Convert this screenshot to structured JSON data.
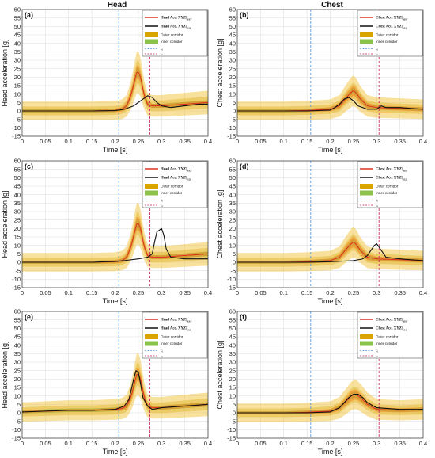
{
  "figure": {
    "column_titles": [
      "Head",
      "Chest"
    ]
  },
  "colors": {
    "outer_corridor": "#f2c94c",
    "outer_corridor_dark": "#d9a400",
    "inner_corridor": "#8bc34a",
    "ref_mean": "#e0301e",
    "ref_band": "#f28c28",
    "simulation": "#111111",
    "t0_line": "#4a90e2",
    "t1_line": "#c2185b",
    "grid": "#d9d9d9"
  },
  "chart_data": [
    {
      "panel": "(a)",
      "type": "line",
      "xlabel": "Time [s]",
      "ylabel": "Head acceleration [g]",
      "xlim": [
        0,
        0.4
      ],
      "ylim": [
        -15,
        60
      ],
      "xticks": [
        "0",
        "0.05",
        "0.1",
        "0.15",
        "0.2",
        "0.25",
        "0.3",
        "0.35",
        "0.4"
      ],
      "yticks": [
        "-15",
        "-10",
        "-5",
        "0",
        "5",
        "10",
        "15",
        "20",
        "25",
        "30",
        "35",
        "40",
        "45",
        "50",
        "55",
        "60"
      ],
      "t0": 0.208,
      "t1": 0.275,
      "legend": {
        "ref": "Head Acc. XYZ|",
        "ref_sub": "REF",
        "sim": "Head Acc. XYZ|",
        "sim_sub": "S31",
        "outer": "Outer corridor",
        "inner": "Inner corridor",
        "t0": "t₀",
        "t1": "t₁"
      },
      "series": [
        {
          "role": "reference",
          "x": [
            0,
            0.05,
            0.1,
            0.15,
            0.2,
            0.215,
            0.225,
            0.235,
            0.242,
            0.248,
            0.255,
            0.262,
            0.27,
            0.28,
            0.3,
            0.35,
            0.4
          ],
          "y": [
            0,
            0,
            0,
            0,
            0.3,
            1,
            3,
            10,
            18,
            24,
            20,
            10,
            4,
            3,
            3,
            4,
            5
          ],
          "band": [
            0.8,
            0.8,
            0.8,
            0.8,
            1,
            1.3,
            2,
            3,
            3.5,
            4,
            3.5,
            2.5,
            1.5,
            1.2,
            1.2,
            1.2,
            1.2
          ]
        },
        {
          "role": "simulation",
          "x": [
            0,
            0.05,
            0.1,
            0.15,
            0.2,
            0.22,
            0.24,
            0.25,
            0.26,
            0.27,
            0.28,
            0.29,
            0.3,
            0.32,
            0.35,
            0.38,
            0.4
          ],
          "y": [
            0,
            0,
            0,
            0,
            0.2,
            1,
            3,
            5,
            7,
            9,
            8,
            5,
            3,
            2,
            3,
            4,
            4
          ]
        }
      ]
    },
    {
      "panel": "(b)",
      "type": "line",
      "xlabel": "Time [s]",
      "ylabel": "Chest acceleration [g]",
      "xlim": [
        0,
        0.4
      ],
      "ylim": [
        -15,
        60
      ],
      "xticks": [
        "0",
        "0.05",
        "0.1",
        "0.15",
        "0.2",
        "0.25",
        "0.3",
        "0.35",
        "0.4"
      ],
      "yticks": [
        "-15",
        "-10",
        "-5",
        "0",
        "5",
        "10",
        "15",
        "20",
        "25",
        "30",
        "35",
        "40",
        "45",
        "50",
        "55",
        "60"
      ],
      "t0": 0.158,
      "t1": 0.305,
      "legend": {
        "ref": "Chest Acc. XYZ|",
        "ref_sub": "REF",
        "sim": "Chest Acc. XYZ|",
        "sim_sub": "S31",
        "outer": "Outer corridor",
        "inner": "Inner corridor",
        "t0": "t₀",
        "t1": "t₁"
      },
      "series": [
        {
          "role": "reference",
          "x": [
            0,
            0.05,
            0.1,
            0.15,
            0.2,
            0.22,
            0.235,
            0.245,
            0.25,
            0.255,
            0.265,
            0.28,
            0.3,
            0.35,
            0.4
          ],
          "y": [
            0,
            0,
            0,
            0.3,
            1,
            3,
            8,
            11,
            12,
            11,
            7,
            3,
            2,
            1.5,
            1
          ],
          "band": [
            0.8,
            0.8,
            0.8,
            1,
            1.2,
            1.8,
            2.5,
            3,
            3,
            3,
            2.5,
            1.8,
            1.3,
            1.2,
            1.2
          ]
        },
        {
          "role": "simulation",
          "x": [
            0,
            0.05,
            0.1,
            0.15,
            0.2,
            0.21,
            0.22,
            0.23,
            0.24,
            0.25,
            0.26,
            0.28,
            0.3,
            0.31,
            0.32,
            0.35,
            0.4
          ],
          "y": [
            0,
            0,
            0,
            0,
            0.5,
            2,
            4,
            7,
            8,
            6,
            3,
            1,
            1,
            3,
            2,
            2,
            1
          ]
        }
      ]
    },
    {
      "panel": "(c)",
      "type": "line",
      "xlabel": "Time [s]",
      "ylabel": "Head acceleration [g]",
      "xlim": [
        0,
        0.4
      ],
      "ylim": [
        -15,
        60
      ],
      "xticks": [
        "0",
        "0.05",
        "0.1",
        "0.15",
        "0.2",
        "0.25",
        "0.3",
        "0.35",
        "0.4"
      ],
      "yticks": [
        "-15",
        "-10",
        "-5",
        "0",
        "5",
        "10",
        "15",
        "20",
        "25",
        "30",
        "35",
        "40",
        "45",
        "50",
        "55",
        "60"
      ],
      "t0": 0.208,
      "t1": 0.275,
      "legend": {
        "ref": "Head Acc. XYZ|",
        "ref_sub": "REF",
        "sim": "Head Acc. XYZ|",
        "sim_sub": "S32",
        "outer": "Outer corridor",
        "inner": "Inner corridor",
        "t0": "t₀",
        "t1": "t₁"
      },
      "series": [
        {
          "role": "reference",
          "x": [
            0,
            0.05,
            0.1,
            0.15,
            0.2,
            0.215,
            0.225,
            0.235,
            0.242,
            0.248,
            0.255,
            0.262,
            0.27,
            0.28,
            0.3,
            0.35,
            0.4
          ],
          "y": [
            0,
            0,
            0,
            0,
            0.3,
            1,
            3,
            10,
            18,
            24,
            20,
            10,
            4,
            3,
            3,
            4,
            5
          ],
          "band": [
            0.8,
            0.8,
            0.8,
            0.8,
            1,
            1.3,
            2,
            3,
            3.5,
            4,
            3.5,
            2.5,
            1.5,
            1.2,
            1.2,
            1.2,
            1.2
          ]
        },
        {
          "role": "simulation",
          "x": [
            0,
            0.05,
            0.1,
            0.15,
            0.2,
            0.22,
            0.25,
            0.27,
            0.28,
            0.285,
            0.29,
            0.295,
            0.3,
            0.305,
            0.31,
            0.32,
            0.35,
            0.4
          ],
          "y": [
            0,
            0,
            0,
            0,
            0.5,
            1,
            2,
            3,
            5,
            12,
            18,
            19,
            20,
            16,
            8,
            3,
            2,
            2
          ]
        }
      ]
    },
    {
      "panel": "(d)",
      "type": "line",
      "xlabel": "Time [s]",
      "ylabel": "Chest acceleration [g]",
      "xlim": [
        0,
        0.4
      ],
      "ylim": [
        -15,
        60
      ],
      "xticks": [
        "0",
        "0.05",
        "0.1",
        "0.15",
        "0.2",
        "0.25",
        "0.3",
        "0.35",
        "0.4"
      ],
      "yticks": [
        "-15",
        "-10",
        "-5",
        "0",
        "5",
        "10",
        "15",
        "20",
        "25",
        "30",
        "35",
        "40",
        "45",
        "50",
        "55",
        "60"
      ],
      "t0": 0.158,
      "t1": 0.305,
      "legend": {
        "ref": "Chest Acc. XYZ|",
        "ref_sub": "REF",
        "sim": "Chest Acc. XYZ|",
        "sim_sub": "S32",
        "outer": "Outer corridor",
        "inner": "Inner corridor",
        "t0": "t₀",
        "t1": "t₁"
      },
      "series": [
        {
          "role": "reference",
          "x": [
            0,
            0.05,
            0.1,
            0.15,
            0.2,
            0.22,
            0.235,
            0.245,
            0.25,
            0.255,
            0.265,
            0.28,
            0.3,
            0.35,
            0.4
          ],
          "y": [
            0,
            0,
            0,
            0.3,
            1,
            3,
            8,
            11,
            12,
            11,
            7,
            3,
            2,
            1.5,
            1
          ],
          "band": [
            0.8,
            0.8,
            0.8,
            1,
            1.2,
            1.8,
            2.5,
            3,
            3,
            3,
            2.5,
            1.8,
            1.3,
            1.2,
            1.2
          ]
        },
        {
          "role": "simulation",
          "x": [
            0,
            0.05,
            0.1,
            0.15,
            0.2,
            0.25,
            0.27,
            0.28,
            0.29,
            0.295,
            0.3,
            0.305,
            0.31,
            0.32,
            0.35,
            0.4
          ],
          "y": [
            0,
            0,
            0,
            0,
            0.3,
            1,
            2,
            4,
            8,
            10,
            11,
            9,
            7,
            3,
            2,
            1
          ]
        }
      ]
    },
    {
      "panel": "(e)",
      "type": "line",
      "xlabel": "Time [s]",
      "ylabel": "Head acceleration [g]",
      "xlim": [
        0,
        0.4
      ],
      "ylim": [
        -15,
        60
      ],
      "xticks": [
        "0",
        "0.05",
        "0.1",
        "0.15",
        "0.2",
        "0.25",
        "0.3",
        "0.35",
        "0.4"
      ],
      "yticks": [
        "-15",
        "-10",
        "-5",
        "0",
        "5",
        "10",
        "15",
        "20",
        "25",
        "30",
        "35",
        "40",
        "45",
        "50",
        "55",
        "60"
      ],
      "t0": 0.208,
      "t1": 0.275,
      "legend": {
        "ref": "Head Acc. XYZ|",
        "ref_sub": "REF",
        "sim": "Head Acc. XYZ|",
        "sim_sub": "S34",
        "outer": "Outer corridor",
        "inner": "Inner corridor",
        "t0": "t₀",
        "t1": "t₁"
      },
      "series": [
        {
          "role": "reference",
          "x": [
            0,
            0.05,
            0.1,
            0.15,
            0.2,
            0.215,
            0.225,
            0.235,
            0.242,
            0.248,
            0.255,
            0.262,
            0.27,
            0.28,
            0.3,
            0.35,
            0.4
          ],
          "y": [
            0.5,
            1,
            1.5,
            1.5,
            2,
            2.5,
            4,
            10,
            18,
            24,
            20,
            10,
            4,
            3,
            3,
            4,
            5
          ],
          "band": [
            0.8,
            0.8,
            0.8,
            0.8,
            1,
            1.3,
            2,
            3,
            3.5,
            4,
            3.5,
            2.5,
            1.5,
            1.2,
            1.2,
            1.2,
            1.2
          ]
        },
        {
          "role": "simulation",
          "x": [
            0,
            0.05,
            0.1,
            0.15,
            0.2,
            0.22,
            0.23,
            0.235,
            0.24,
            0.245,
            0.25,
            0.255,
            0.26,
            0.27,
            0.28,
            0.3,
            0.35,
            0.4
          ],
          "y": [
            0.5,
            1,
            1.5,
            1.5,
            2,
            4,
            8,
            14,
            20,
            25,
            24,
            17,
            9,
            4,
            2,
            3,
            4,
            5
          ]
        }
      ]
    },
    {
      "panel": "(f)",
      "type": "line",
      "xlabel": "Time [s]",
      "ylabel": "Chest acceleration [g]",
      "xlim": [
        0,
        0.4
      ],
      "ylim": [
        -15,
        60
      ],
      "xticks": [
        "0",
        "0.05",
        "0.1",
        "0.15",
        "0.2",
        "0.25",
        "0.3",
        "0.35",
        "0.4"
      ],
      "yticks": [
        "-15",
        "-10",
        "-5",
        "0",
        "5",
        "10",
        "15",
        "20",
        "25",
        "30",
        "35",
        "40",
        "45",
        "50",
        "55",
        "60"
      ],
      "t0": 0.158,
      "t1": 0.305,
      "legend": {
        "ref": "Chest Acc. XYZ|",
        "ref_sub": "REF",
        "sim": "Chest Acc. XYZ|",
        "sim_sub": "S34",
        "outer": "Outer corridor",
        "inner": "Inner corridor",
        "t0": "t₀",
        "t1": "t₁"
      },
      "series": [
        {
          "role": "reference",
          "x": [
            0,
            0.05,
            0.1,
            0.15,
            0.2,
            0.22,
            0.235,
            0.245,
            0.255,
            0.265,
            0.28,
            0.3,
            0.35,
            0.4
          ],
          "y": [
            0,
            0,
            0,
            0.3,
            1,
            3,
            7,
            10,
            11,
            9,
            5,
            2,
            1.5,
            2
          ],
          "band": [
            0.8,
            0.8,
            0.8,
            1,
            1.2,
            1.8,
            2.5,
            3,
            3,
            2.5,
            1.8,
            1.3,
            1.2,
            1.2
          ]
        },
        {
          "role": "simulation",
          "x": [
            0,
            0.05,
            0.1,
            0.15,
            0.2,
            0.22,
            0.23,
            0.24,
            0.25,
            0.26,
            0.27,
            0.28,
            0.3,
            0.35,
            0.4
          ],
          "y": [
            0,
            0,
            0,
            0,
            0.5,
            3,
            6,
            9,
            11,
            11,
            9,
            6,
            3,
            2,
            2
          ]
        }
      ]
    }
  ]
}
